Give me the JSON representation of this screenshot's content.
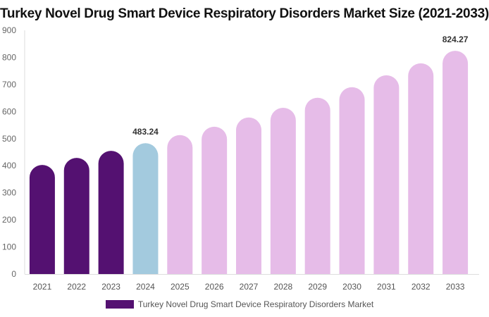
{
  "chart_data": {
    "type": "bar",
    "title": "Turkey Novel Drug Smart Device Respiratory Disorders Market Size (2021-2033)",
    "categories": [
      "2021",
      "2022",
      "2023",
      "2024",
      "2025",
      "2026",
      "2027",
      "2028",
      "2029",
      "2030",
      "2031",
      "2032",
      "2033"
    ],
    "series": [
      {
        "name": "Turkey Novel Drug Smart Device Respiratory Disorders Market",
        "values": [
          403,
          429,
          455,
          483.24,
          513,
          544,
          578,
          614,
          651,
          690,
          734,
          778,
          824.27
        ]
      }
    ],
    "data_labels": {
      "3": "483.24",
      "12": "824.27"
    },
    "ylim": [
      0,
      900
    ],
    "yticks": [
      0,
      100,
      200,
      300,
      400,
      500,
      600,
      700,
      800,
      900
    ],
    "grid": false,
    "legend": "bottom",
    "colors": {
      "historical": "#541171",
      "current": "#a3cade",
      "forecast": "#e6bce8"
    },
    "bar_color_groups": [
      "historical",
      "historical",
      "historical",
      "current",
      "forecast",
      "forecast",
      "forecast",
      "forecast",
      "forecast",
      "forecast",
      "forecast",
      "forecast",
      "forecast"
    ]
  }
}
